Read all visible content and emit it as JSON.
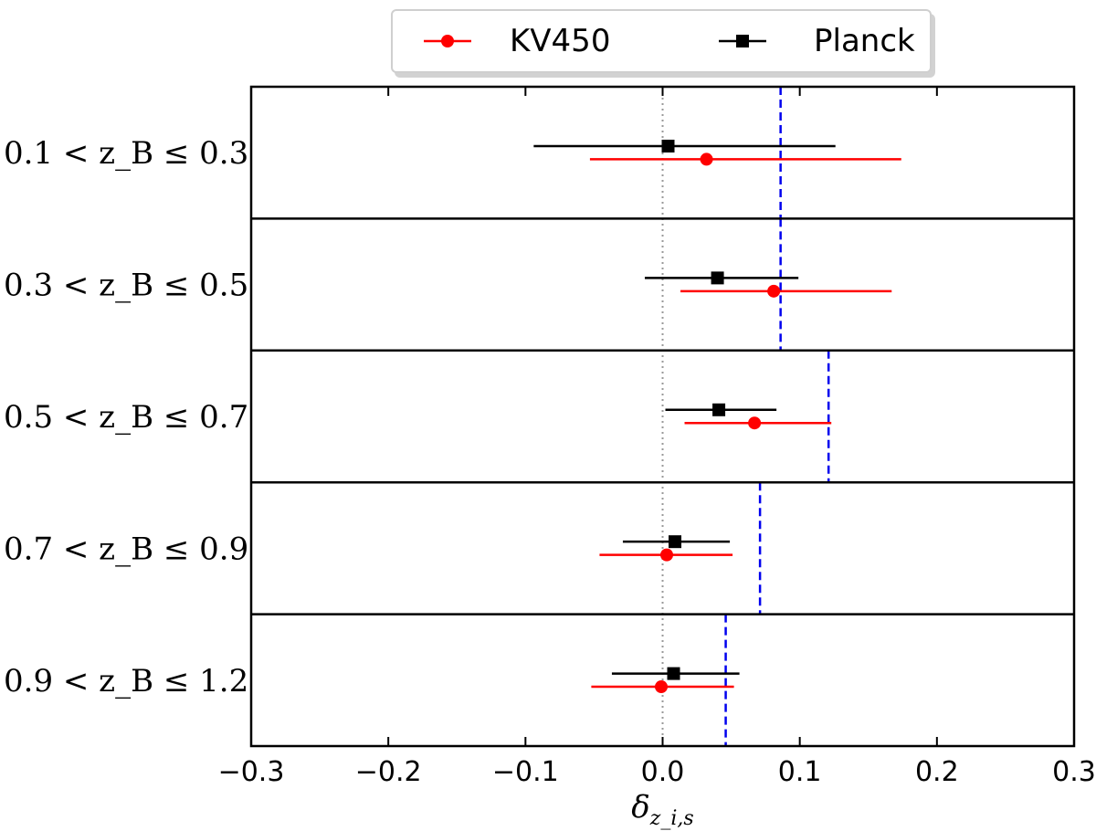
{
  "chart_data": {
    "type": "scatter",
    "subtype": "horizontal-errorbar-forest",
    "xlabel": "δ_{z_i,s}",
    "xlim": [
      -0.3,
      0.3
    ],
    "xticks": [
      -0.3,
      -0.2,
      -0.1,
      0.0,
      0.1,
      0.2,
      0.3
    ],
    "xtick_labels": [
      "−0.3",
      "−0.2",
      "−0.1",
      "0.0",
      "0.1",
      "0.2",
      "0.3"
    ],
    "reference_line": {
      "x": 0.0,
      "style": "dotted",
      "color": "#999999"
    },
    "legend": {
      "placement": "top-center",
      "entries": [
        "KV450",
        "Planck"
      ]
    },
    "colors": {
      "KV450": "#ff0000",
      "Planck": "#000000",
      "threshold": "#0000ee"
    },
    "bins": [
      {
        "label": "0.1 < z_B ≤ 0.3",
        "planck": {
          "value": 0.004,
          "lo": -0.094,
          "hi": 0.126
        },
        "kv450": {
          "value": 0.032,
          "lo": -0.053,
          "hi": 0.174
        },
        "threshold": 0.086
      },
      {
        "label": "0.3 < z_B ≤ 0.5",
        "planck": {
          "value": 0.04,
          "lo": -0.013,
          "hi": 0.099
        },
        "kv450": {
          "value": 0.081,
          "lo": 0.013,
          "hi": 0.167
        },
        "threshold": 0.086
      },
      {
        "label": "0.5 < z_B ≤ 0.7",
        "planck": {
          "value": 0.041,
          "lo": 0.002,
          "hi": 0.083
        },
        "kv450": {
          "value": 0.067,
          "lo": 0.016,
          "hi": 0.123
        },
        "threshold": 0.121
      },
      {
        "label": "0.7 < z_B ≤ 0.9",
        "planck": {
          "value": 0.009,
          "lo": -0.029,
          "hi": 0.049
        },
        "kv450": {
          "value": 0.003,
          "lo": -0.046,
          "hi": 0.051
        },
        "threshold": 0.071
      },
      {
        "label": "0.9 < z_B ≤ 1.2",
        "planck": {
          "value": 0.008,
          "lo": -0.037,
          "hi": 0.056
        },
        "kv450": {
          "value": -0.001,
          "lo": -0.052,
          "hi": 0.052
        },
        "threshold": 0.046
      }
    ]
  }
}
